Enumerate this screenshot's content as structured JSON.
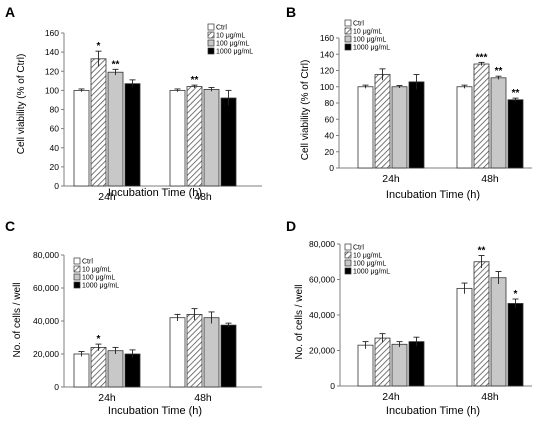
{
  "figure": {
    "legend_labels": [
      "Ctrl",
      "10 μg/mL",
      "100 μg/mL",
      "1000 μg/mL"
    ],
    "series_fills": [
      "#ffffff",
      "hatch",
      "#c8c8c8",
      "#000000"
    ],
    "stroke_color": "#333333",
    "hatch_color": "#555555"
  },
  "chart_data": [
    {
      "panel": "A",
      "type": "bar",
      "categories": [
        "24h",
        "48h"
      ],
      "xlabel": "Incubation Time (h)",
      "ylabel": "Cell viability (% of Ctrl)",
      "ylim": [
        0,
        160
      ],
      "yticks": [
        "0",
        "20",
        "40",
        "60",
        "80",
        "100",
        "120",
        "140",
        "160"
      ],
      "ytick_values": [
        0,
        20,
        40,
        60,
        80,
        100,
        120,
        140,
        160
      ],
      "legend": "top-right",
      "series": [
        {
          "name": "Ctrl",
          "values": [
            100,
            100
          ],
          "errors": [
            1.5,
            1.5
          ],
          "sig": [
            "",
            ""
          ]
        },
        {
          "name": "10 μg/mL",
          "values": [
            133,
            104
          ],
          "errors": [
            8,
            1.5
          ],
          "sig": [
            "*",
            "**"
          ]
        },
        {
          "name": "100 μg/mL",
          "values": [
            119,
            101
          ],
          "errors": [
            3,
            2
          ],
          "sig": [
            "**",
            ""
          ]
        },
        {
          "name": "1000 μg/mL",
          "values": [
            107,
            92
          ],
          "errors": [
            4,
            8
          ],
          "sig": [
            "",
            ""
          ]
        }
      ]
    },
    {
      "panel": "B",
      "type": "bar",
      "categories": [
        "24h",
        "48h"
      ],
      "xlabel": "Incubation Time (h)",
      "ylabel": "Cell viability (% of Ctrl)",
      "ylim": [
        0,
        160
      ],
      "yticks": [
        "0",
        "20",
        "40",
        "60",
        "80",
        "100",
        "120",
        "140",
        "160"
      ],
      "ytick_values": [
        0,
        20,
        40,
        60,
        80,
        100,
        120,
        140,
        160
      ],
      "legend": "top-left",
      "series": [
        {
          "name": "Ctrl",
          "values": [
            100,
            100
          ],
          "errors": [
            2,
            2
          ],
          "sig": [
            "",
            ""
          ]
        },
        {
          "name": "10 μg/mL",
          "values": [
            115,
            128
          ],
          "errors": [
            7,
            2
          ],
          "sig": [
            "",
            "***"
          ]
        },
        {
          "name": "100 μg/mL",
          "values": [
            100,
            111
          ],
          "errors": [
            1.5,
            2
          ],
          "sig": [
            "",
            "**"
          ]
        },
        {
          "name": "1000 μg/mL",
          "values": [
            106,
            84
          ],
          "errors": [
            9,
            2
          ],
          "sig": [
            "",
            "**"
          ]
        }
      ]
    },
    {
      "panel": "C",
      "type": "bar",
      "categories": [
        "24h",
        "48h"
      ],
      "xlabel": "Incubation Time (h)",
      "ylabel": "No. of cells / well",
      "ylim": [
        0,
        80000
      ],
      "yticks": [
        "0",
        "20,000",
        "40,000",
        "60,000",
        "80,000"
      ],
      "ytick_values": [
        0,
        20000,
        40000,
        60000,
        80000
      ],
      "legend": "top-left",
      "series": [
        {
          "name": "Ctrl",
          "values": [
            20000,
            42000
          ],
          "errors": [
            1500,
            2000
          ],
          "sig": [
            "",
            ""
          ]
        },
        {
          "name": "10 μg/mL",
          "values": [
            24000,
            44000
          ],
          "errors": [
            2000,
            3500
          ],
          "sig": [
            "*",
            ""
          ]
        },
        {
          "name": "100 μg/mL",
          "values": [
            22000,
            42000
          ],
          "errors": [
            2000,
            3500
          ],
          "sig": [
            "",
            ""
          ]
        },
        {
          "name": "1000 μg/mL",
          "values": [
            20000,
            37500
          ],
          "errors": [
            2500,
            1200
          ],
          "sig": [
            "",
            ""
          ]
        }
      ]
    },
    {
      "panel": "D",
      "type": "bar",
      "categories": [
        "24h",
        "48h"
      ],
      "xlabel": "Incubation Time (h)",
      "ylabel": "No. of cells / well",
      "ylim": [
        0,
        80000
      ],
      "yticks": [
        "0",
        "20,000",
        "40,000",
        "60,000",
        "80,000"
      ],
      "ytick_values": [
        0,
        20000,
        40000,
        60000,
        80000
      ],
      "legend": "top-left",
      "series": [
        {
          "name": "Ctrl",
          "values": [
            23000,
            55000
          ],
          "errors": [
            2000,
            3000
          ],
          "sig": [
            "",
            ""
          ]
        },
        {
          "name": "10 μg/mL",
          "values": [
            27000,
            70000
          ],
          "errors": [
            2500,
            3500
          ],
          "sig": [
            "",
            "**"
          ]
        },
        {
          "name": "100 μg/mL",
          "values": [
            23500,
            61000
          ],
          "errors": [
            1500,
            3500
          ],
          "sig": [
            "",
            ""
          ]
        },
        {
          "name": "1000 μg/mL",
          "values": [
            25000,
            46500
          ],
          "errors": [
            2500,
            2500
          ],
          "sig": [
            "",
            "*"
          ]
        }
      ]
    }
  ]
}
